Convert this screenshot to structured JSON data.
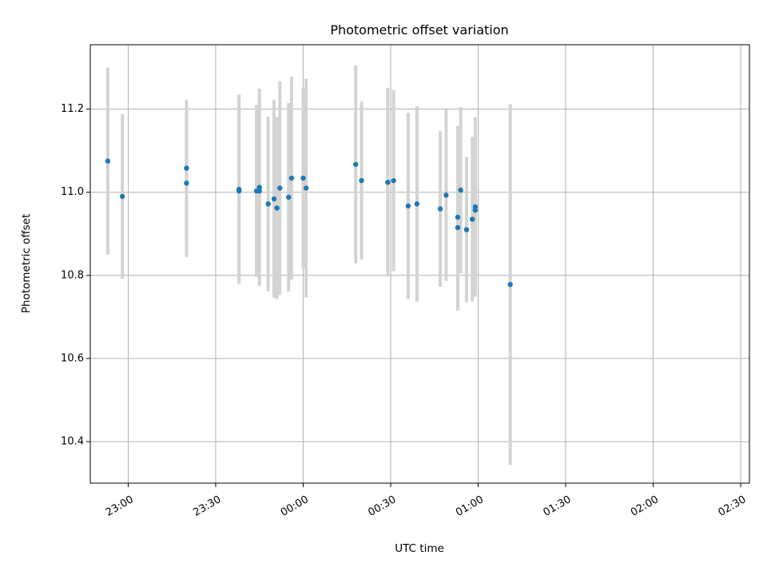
{
  "chart_data": {
    "type": "scatter",
    "title": "Photometric offset variation",
    "xlabel": "UTC time",
    "ylabel": "Photometric offset",
    "x_ticks": [
      "23:00",
      "23:30",
      "00:00",
      "00:30",
      "01:00",
      "01:30",
      "02:00",
      "02:30"
    ],
    "x_range": [
      "22:47",
      "02:33"
    ],
    "ylim": [
      10.3,
      11.355
    ],
    "y_ticks": [
      "10.4",
      "10.6",
      "10.8",
      "11.0",
      "11.2"
    ],
    "grid": true,
    "errorbar_color": "#d3d3d3",
    "point_color": "#1f77b4",
    "series": [
      {
        "points": [
          {
            "x": "22:53",
            "y": 11.075,
            "err": 0.225
          },
          {
            "x": "22:58",
            "y": 10.99,
            "err": 0.198
          },
          {
            "x": "23:20",
            "y": 11.058,
            "err": 0.164
          },
          {
            "x": "23:20",
            "y": 11.022,
            "err": 0.178
          },
          {
            "x": "23:38",
            "y": 11.003,
            "err": 0.21
          },
          {
            "x": "23:38",
            "y": 11.007,
            "err": 0.228
          },
          {
            "x": "23:44",
            "y": 11.003,
            "err": 0.207
          },
          {
            "x": "23:45",
            "y": 11.003,
            "err": 0.227
          },
          {
            "x": "23:45",
            "y": 11.012,
            "err": 0.237
          },
          {
            "x": "23:48",
            "y": 10.972,
            "err": 0.21
          },
          {
            "x": "23:50",
            "y": 10.984,
            "err": 0.238
          },
          {
            "x": "23:51",
            "y": 10.962,
            "err": 0.219
          },
          {
            "x": "23:52",
            "y": 11.01,
            "err": 0.257
          },
          {
            "x": "23:55",
            "y": 10.988,
            "err": 0.227
          },
          {
            "x": "23:56",
            "y": 11.034,
            "err": 0.244
          },
          {
            "x": "00:00",
            "y": 11.034,
            "err": 0.218
          },
          {
            "x": "00:01",
            "y": 11.01,
            "err": 0.263
          },
          {
            "x": "00:18",
            "y": 11.067,
            "err": 0.238
          },
          {
            "x": "00:20",
            "y": 11.028,
            "err": 0.19
          },
          {
            "x": "00:29",
            "y": 11.024,
            "err": 0.227
          },
          {
            "x": "00:31",
            "y": 11.028,
            "err": 0.218
          },
          {
            "x": "00:36",
            "y": 10.967,
            "err": 0.224
          },
          {
            "x": "00:39",
            "y": 10.972,
            "err": 0.235
          },
          {
            "x": "00:47",
            "y": 10.96,
            "err": 0.187
          },
          {
            "x": "00:49",
            "y": 10.993,
            "err": 0.206
          },
          {
            "x": "00:53",
            "y": 10.94,
            "err": 0.22
          },
          {
            "x": "00:53",
            "y": 10.915,
            "err": 0.2
          },
          {
            "x": "00:54",
            "y": 11.005,
            "err": 0.2
          },
          {
            "x": "00:56",
            "y": 10.91,
            "err": 0.175
          },
          {
            "x": "00:58",
            "y": 10.935,
            "err": 0.198
          },
          {
            "x": "00:59",
            "y": 10.957,
            "err": 0.18
          },
          {
            "x": "00:59",
            "y": 10.965,
            "err": 0.216
          },
          {
            "x": "01:11",
            "y": 10.778,
            "err": 0.434
          }
        ]
      }
    ]
  }
}
